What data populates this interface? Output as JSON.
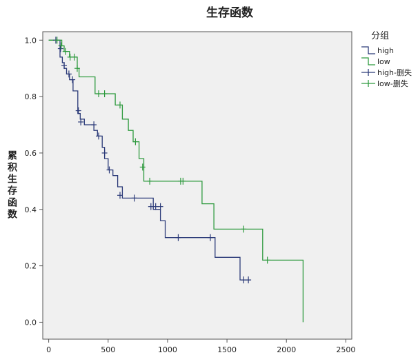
{
  "chart_data": {
    "type": "line",
    "title": "生存函数",
    "ylabel": "累积生存函数",
    "xlabel": "",
    "xlim": [
      -50,
      2550
    ],
    "ylim": [
      -0.06,
      1.03
    ],
    "x_ticks": [
      "0",
      "500",
      "1000",
      "1500",
      "2000",
      "2500"
    ],
    "y_ticks": [
      "0.0",
      "0.2",
      "0.4",
      "0.6",
      "0.8",
      "1.0"
    ],
    "plot_background": "#f0f0f0",
    "legend": {
      "title": "分组",
      "position": "top-right",
      "entries": [
        {
          "label": "high",
          "color": "#2b3a78",
          "marker": "line"
        },
        {
          "label": "low",
          "color": "#2e9a3e",
          "marker": "line"
        },
        {
          "label": "high-删失",
          "color": "#2b3a78",
          "marker": "plus"
        },
        {
          "label": "low-删失",
          "color": "#2e9a3e",
          "marker": "plus"
        }
      ]
    },
    "series": [
      {
        "name": "high",
        "color": "#2b3a78",
        "x": [
          0,
          80,
          95,
          115,
          130,
          150,
          175,
          205,
          245,
          265,
          300,
          380,
          410,
          450,
          470,
          500,
          540,
          580,
          620,
          780,
          880,
          940,
          980,
          1370,
          1400,
          1590,
          1610,
          1700
        ],
        "y": [
          1.0,
          1.0,
          0.94,
          0.92,
          0.9,
          0.88,
          0.86,
          0.82,
          0.74,
          0.72,
          0.7,
          0.68,
          0.66,
          0.62,
          0.58,
          0.54,
          0.52,
          0.48,
          0.44,
          0.44,
          0.4,
          0.36,
          0.3,
          0.3,
          0.23,
          0.23,
          0.15,
          0.15
        ],
        "censored_x": [
          60,
          100,
          130,
          170,
          200,
          250,
          270,
          380,
          420,
          470,
          510,
          600,
          720,
          860,
          900,
          940,
          1090,
          1360,
          1640,
          1680
        ],
        "censored_y": [
          1.0,
          0.97,
          0.91,
          0.88,
          0.86,
          0.75,
          0.71,
          0.7,
          0.66,
          0.6,
          0.54,
          0.45,
          0.44,
          0.41,
          0.41,
          0.41,
          0.3,
          0.3,
          0.15,
          0.15
        ]
      },
      {
        "name": "low",
        "color": "#2e9a3e",
        "x": [
          0,
          80,
          110,
          130,
          175,
          200,
          240,
          255,
          280,
          390,
          420,
          560,
          620,
          670,
          710,
          760,
          800,
          1260,
          1290,
          1370,
          1390,
          1770,
          1800,
          2130,
          2140
        ],
        "y": [
          1.0,
          1.0,
          0.98,
          0.96,
          0.94,
          0.94,
          0.9,
          0.87,
          0.87,
          0.81,
          0.81,
          0.77,
          0.72,
          0.68,
          0.64,
          0.58,
          0.5,
          0.5,
          0.42,
          0.42,
          0.33,
          0.33,
          0.22,
          0.22,
          0.0
        ],
        "censored_x": [
          70,
          105,
          140,
          180,
          215,
          240,
          420,
          470,
          600,
          730,
          790,
          850,
          1110,
          1130,
          1640,
          1840
        ],
        "censored_y": [
          1.0,
          0.98,
          0.96,
          0.94,
          0.94,
          0.9,
          0.81,
          0.81,
          0.77,
          0.64,
          0.55,
          0.5,
          0.5,
          0.5,
          0.33,
          0.22
        ]
      }
    ]
  }
}
